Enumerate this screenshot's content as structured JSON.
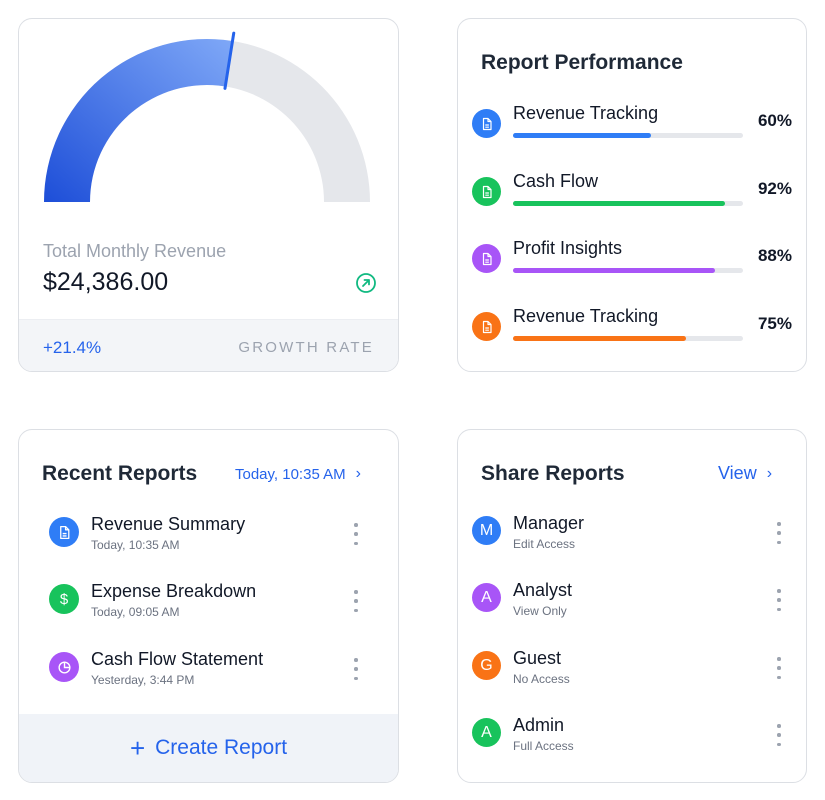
{
  "revenue": {
    "label": "Total Monthly Revenue",
    "value": "$24,386.00",
    "gauge_progress": 0.55,
    "growth_value": "+21.4%",
    "growth_label": "GROWTH RATE",
    "icon": "trend-up-icon",
    "colors": {
      "gauge_start": "#1d4ed8",
      "gauge_end": "#7fa8f7",
      "gauge_track": "#e5e7eb",
      "trend": "#10b981"
    }
  },
  "performance": {
    "title": "Report Performance",
    "items": [
      {
        "name": "Revenue Tracking",
        "percent_label": "60%",
        "value": 0.6,
        "color": "#2f7df6",
        "icon": "document-icon"
      },
      {
        "name": "Cash Flow",
        "percent_label": "92%",
        "value": 0.92,
        "color": "#18c35c",
        "icon": "document-icon"
      },
      {
        "name": "Profit Insights",
        "percent_label": "88%",
        "value": 0.88,
        "color": "#a855f7",
        "icon": "document-icon"
      },
      {
        "name": "Revenue Tracking",
        "percent_label": "75%",
        "value": 0.75,
        "color": "#f97316",
        "icon": "document-icon"
      }
    ]
  },
  "recent": {
    "title": "Recent Reports",
    "header_link": "Today, 10:35 AM",
    "items": [
      {
        "title": "Revenue Summary",
        "subtitle": "Today, 10:35 AM",
        "color": "#2f7df6",
        "icon": "document-icon"
      },
      {
        "title": "Expense Breakdown",
        "subtitle": "Today, 09:05 AM",
        "color": "#18c35c",
        "icon": "dollar-icon"
      },
      {
        "title": "Cash Flow Statement",
        "subtitle": "Yesterday, 3:44 PM",
        "color": "#a855f7",
        "icon": "pie-chart-icon"
      }
    ],
    "create_label": "Create Report"
  },
  "share": {
    "title": "Share Reports",
    "view_link": "View",
    "users": [
      {
        "initial": "M",
        "name": "Manager",
        "access": "Edit Access",
        "color": "#2f7df6"
      },
      {
        "initial": "A",
        "name": "Analyst",
        "access": "View Only",
        "color": "#a855f7"
      },
      {
        "initial": "G",
        "name": "Guest",
        "access": "No Access",
        "color": "#f97316"
      },
      {
        "initial": "A",
        "name": "Admin",
        "access": "Full Access",
        "color": "#18c35c"
      }
    ]
  }
}
